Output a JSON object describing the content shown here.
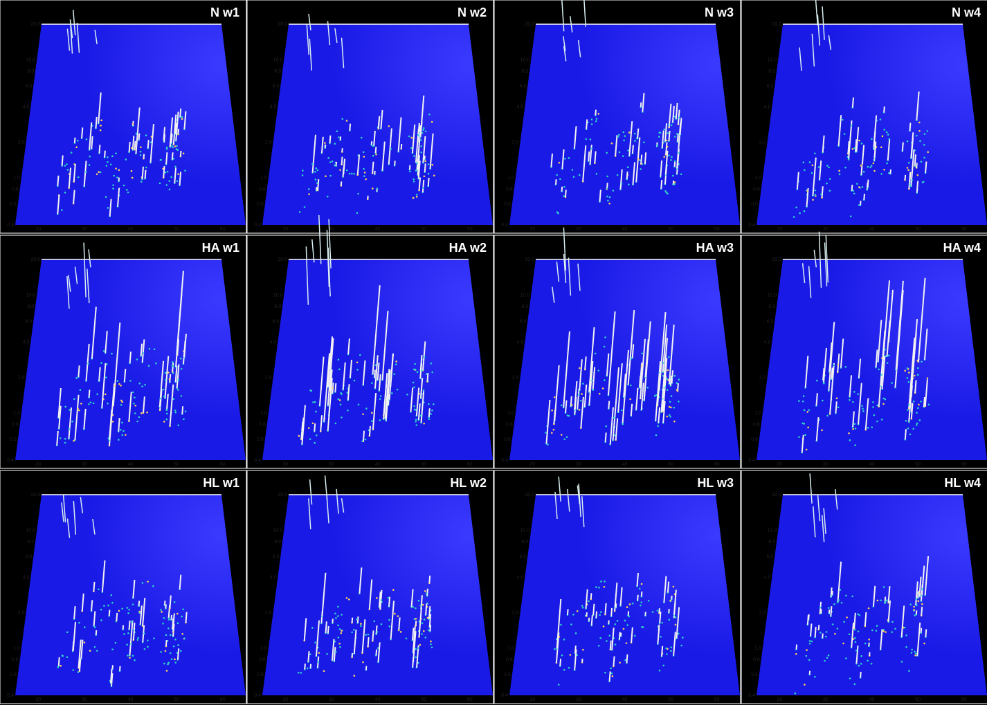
{
  "panels": [
    {
      "label": "N w1"
    },
    {
      "label": "N w2"
    },
    {
      "label": "N w3"
    },
    {
      "label": "N w4"
    },
    {
      "label": "HA w1"
    },
    {
      "label": "HA w2"
    },
    {
      "label": "HA w3"
    },
    {
      "label": "HA w4"
    },
    {
      "label": "HL w1"
    },
    {
      "label": "HL w2"
    },
    {
      "label": "HL w3"
    },
    {
      "label": "HL w4"
    }
  ],
  "x_ticks": [
    "20",
    "30",
    "40",
    "50",
    "60"
  ],
  "y_ticks": [
    "0.4",
    "0.6",
    "0.8",
    "1.0",
    "2.0",
    "4.0",
    "6.0",
    "8.0",
    "10.0",
    "20.0"
  ]
}
